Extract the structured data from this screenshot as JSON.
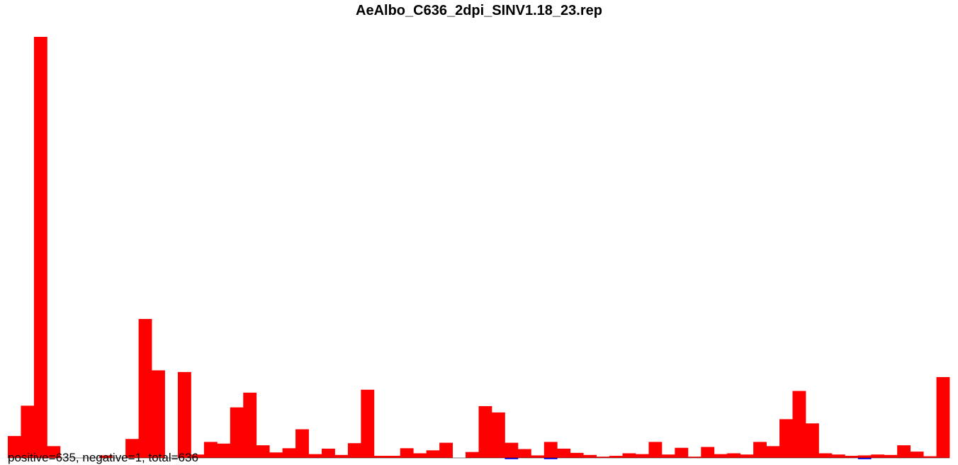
{
  "chart_data": {
    "type": "bar",
    "title": "AeAlbo_C636_2dpi_SINV1.18_23.rep",
    "xlabel": "",
    "ylabel": "",
    "ylim": [
      -1,
      100
    ],
    "grid": false,
    "legend": "none",
    "positive_color": "#ff0000",
    "negative_color": "#0000ff",
    "values": [
      5.2,
      12.4,
      100,
      2.8,
      0,
      0,
      0,
      0.6,
      0,
      4.5,
      33,
      20.8,
      0,
      20.4,
      0.8,
      3.8,
      3.4,
      12,
      15.5,
      3,
      1.3,
      2.3,
      6.8,
      0.9,
      2.2,
      0.7,
      3.5,
      16.2,
      0.5,
      0.5,
      2.3,
      1.1,
      1.8,
      3.6,
      0,
      1.4,
      12.3,
      10.8,
      3.6,
      2.1,
      0.6,
      3.8,
      2.2,
      1.2,
      0.7,
      0.3,
      0.5,
      1.1,
      0.9,
      3.8,
      0.8,
      2.4,
      0.3,
      2.6,
      0.9,
      1.1,
      0.8,
      3.8,
      2.8,
      9.2,
      15.9,
      8.2,
      1.1,
      0.8,
      0.5,
      0.6,
      0.8,
      0.7,
      3,
      1.5,
      0.4,
      19.2
    ],
    "negative_values": [
      0,
      0,
      0,
      0,
      0,
      0,
      0,
      0,
      0,
      0,
      0,
      0,
      0,
      0,
      0,
      0,
      0,
      0,
      0,
      0,
      0,
      0,
      0,
      0,
      0,
      0,
      0,
      0,
      0,
      0,
      0,
      0,
      0,
      0,
      0,
      0,
      0,
      0,
      -0.3,
      0,
      0,
      -0.3,
      0,
      0,
      0,
      0,
      0,
      0,
      0,
      0,
      0,
      0,
      0,
      0,
      0,
      0,
      0,
      0,
      0,
      0,
      0,
      0,
      0,
      0,
      0,
      -0.3,
      0,
      0,
      0,
      0,
      0,
      0
    ]
  },
  "footer": {
    "counts": "positive=635, negative=1, total=636"
  }
}
